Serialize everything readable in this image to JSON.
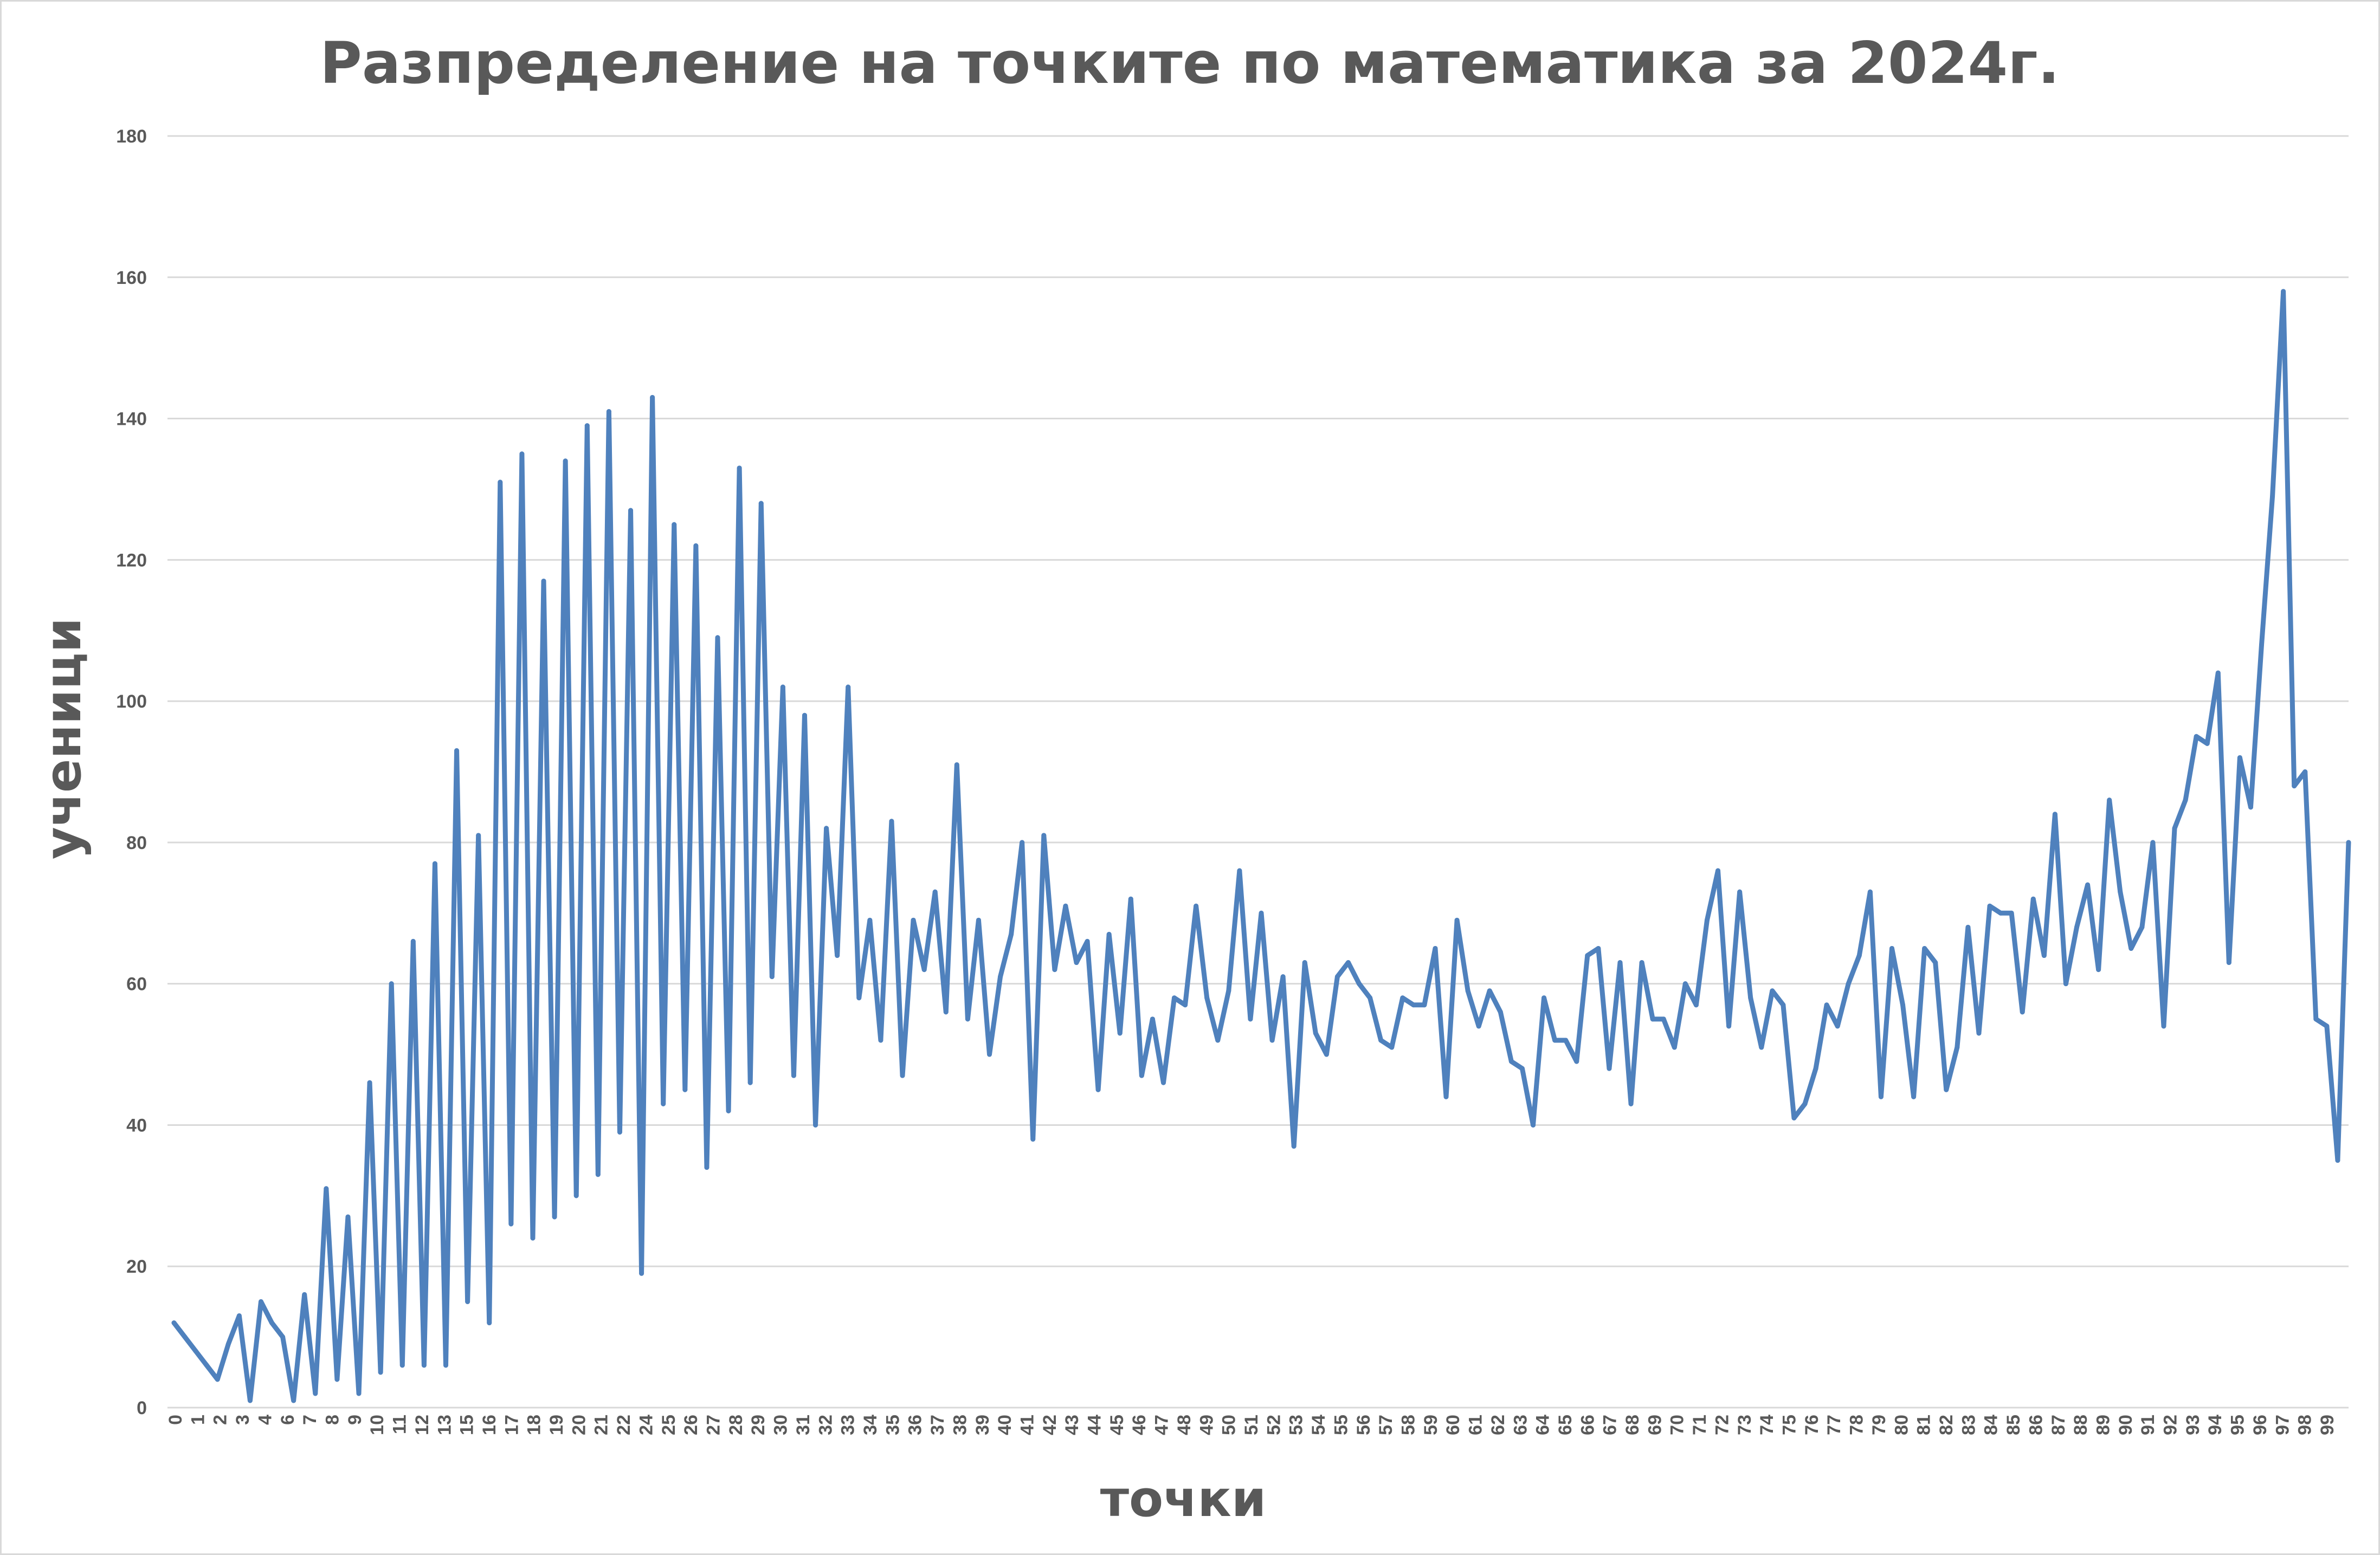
{
  "chart_data": {
    "type": "line",
    "title": "Разпределение на точките по математика за 2024г.",
    "xlabel": "точки",
    "ylabel": "ученици",
    "ylim": [
      0,
      180
    ],
    "yticks": [
      0,
      20,
      40,
      60,
      80,
      100,
      120,
      140,
      160,
      180
    ],
    "grid": true,
    "legend": "none",
    "x_tick_labels": [
      "0",
      "1",
      "2",
      "3",
      "4",
      "6",
      "7",
      "8",
      "9",
      "10",
      "11",
      "12",
      "13",
      "15",
      "16",
      "17",
      "18",
      "19",
      "20",
      "21",
      "22",
      "24",
      "25",
      "26",
      "27",
      "28",
      "29",
      "30",
      "31",
      "32",
      "33",
      "34",
      "35",
      "36",
      "37",
      "38",
      "39",
      "40",
      "41",
      "42",
      "43",
      "44",
      "45",
      "46",
      "47",
      "48",
      "49",
      "50",
      "51",
      "52",
      "53",
      "54",
      "55",
      "56",
      "57",
      "58",
      "59",
      "60",
      "61",
      "62",
      "63",
      "64",
      "65",
      "66",
      "67",
      "68",
      "69",
      "70",
      "71",
      "72",
      "73",
      "74",
      "75",
      "76",
      "77",
      "78",
      "79",
      "80",
      "81",
      "82",
      "83",
      "84",
      "85",
      "86",
      "87",
      "88",
      "89",
      "90",
      "91",
      "92",
      "93",
      "94",
      "95",
      "96",
      "97",
      "98",
      "99"
    ],
    "series": [
      {
        "color": "#4f81bd",
        "values": [
          12,
          10,
          8,
          6,
          4,
          9,
          13,
          1,
          15,
          12,
          10,
          1,
          16,
          2,
          31,
          4,
          27,
          2,
          46,
          5,
          60,
          6,
          66,
          6,
          77,
          6,
          93,
          15,
          81,
          12,
          131,
          26,
          135,
          24,
          117,
          27,
          134,
          30,
          139,
          33,
          141,
          39,
          127,
          19,
          143,
          43,
          125,
          45,
          122,
          34,
          109,
          42,
          133,
          46,
          128,
          61,
          102,
          47,
          98,
          40,
          82,
          64,
          102,
          58,
          69,
          52,
          83,
          47,
          69,
          62,
          73,
          56,
          91,
          55,
          69,
          50,
          61,
          67,
          80,
          38,
          81,
          62,
          71,
          63,
          66,
          45,
          67,
          53,
          72,
          47,
          55,
          46,
          58,
          57,
          71,
          58,
          52,
          59,
          76,
          55,
          70,
          52,
          61,
          37,
          63,
          53,
          50,
          61,
          63,
          60,
          58,
          52,
          51,
          58,
          57,
          57,
          65,
          44,
          69,
          59,
          54,
          59,
          56,
          49,
          48,
          40,
          58,
          52,
          52,
          49,
          64,
          65,
          48,
          63,
          43,
          63,
          55,
          55,
          51,
          60,
          57,
          69,
          76,
          54,
          73,
          58,
          51,
          59,
          57,
          41,
          43,
          48,
          57,
          54,
          60,
          64,
          73,
          44,
          65,
          57,
          44,
          65,
          63,
          45,
          51,
          68,
          53,
          71,
          70,
          70,
          56,
          72,
          64,
          84,
          60,
          68,
          74,
          62,
          86,
          73,
          65,
          68,
          80,
          54,
          82,
          86,
          95,
          94,
          104,
          63,
          92,
          85,
          108,
          129,
          158,
          88,
          90,
          55,
          54,
          35,
          80
        ]
      }
    ]
  }
}
